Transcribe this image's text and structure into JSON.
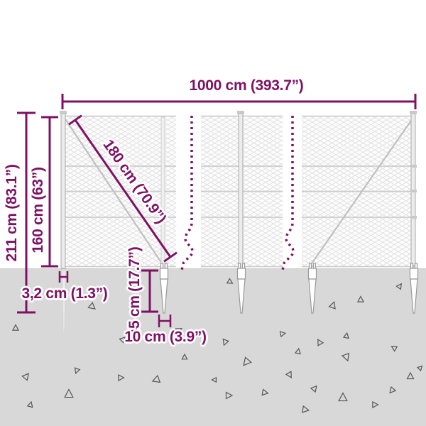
{
  "diagram": {
    "dimensions": {
      "total_width": "1000 cm (393.7”)",
      "total_height": "211 cm (83.1”)",
      "fence_height": "160 cm (63”)",
      "brace_length": "180 cm (70.9”)",
      "post_diameter": "3,2 cm (1.3”)",
      "spike_depth": "45 cm (17.7”)",
      "spike_width": "10 cm (3.9”)"
    },
    "colors": {
      "dimension_accent": "#7e1163",
      "ground": "#d8d8d8",
      "structure_gray": "#bdbdbd",
      "mesh_line": "#e0e0e0"
    }
  },
  "ground": {
    "triangles": [
      [
        22,
        462,
        0,
        0.9
      ],
      [
        37,
        530,
        40,
        1.0
      ],
      [
        43,
        570,
        15,
        0.8
      ],
      [
        97,
        555,
        0,
        1.3
      ],
      [
        108,
        522,
        200,
        0.8
      ],
      [
        130,
        432,
        130,
        1.0
      ],
      [
        170,
        532,
        90,
        0.9
      ],
      [
        173,
        478,
        45,
        0.8
      ],
      [
        220,
        535,
        250,
        1.1
      ],
      [
        252,
        465,
        60,
        0.9
      ],
      [
        260,
        503,
        0,
        0.8
      ],
      [
        302,
        535,
        270,
        0.7
      ],
      [
        317,
        482,
        200,
        0.9
      ],
      [
        322,
        557,
        90,
        1.0
      ],
      [
        324,
        397,
        120,
        0.8
      ],
      [
        347,
        510,
        220,
        1.2
      ],
      [
        373,
        553,
        100,
        0.9
      ],
      [
        398,
        470,
        80,
        0.8
      ],
      [
        408,
        528,
        150,
        0.9
      ],
      [
        420,
        495,
        10,
        0.8
      ],
      [
        430,
        577,
        100,
        1.0
      ],
      [
        443,
        547,
        40,
        0.9
      ],
      [
        450,
        482,
        330,
        0.9
      ],
      [
        469,
        430,
        20,
        1.0
      ],
      [
        483,
        560,
        0,
        1.3
      ],
      [
        488,
        473,
        10,
        0.8
      ],
      [
        488,
        503,
        160,
        1.1
      ],
      [
        508,
        422,
        0,
        0.9
      ],
      [
        528,
        570,
        90,
        0.9
      ],
      [
        552,
        550,
        220,
        0.9
      ],
      [
        555,
        490,
        300,
        0.8
      ],
      [
        563,
        403,
        35,
        0.8
      ],
      [
        578,
        530,
        0,
        1.0
      ],
      [
        592,
        518,
        45,
        0.7
      ]
    ]
  }
}
